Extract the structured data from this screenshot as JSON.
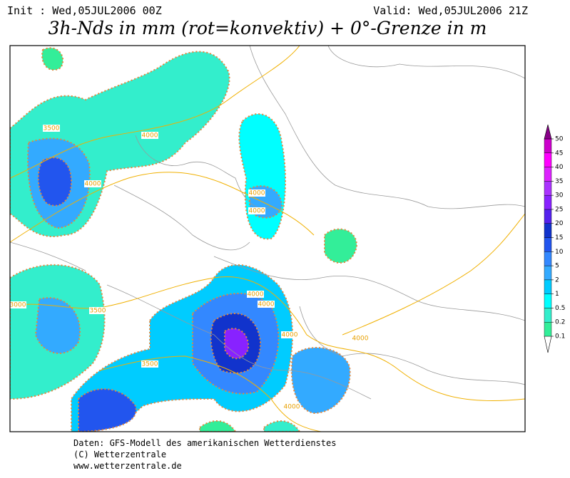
{
  "header": {
    "init": "Init : Wed,05JUL2006 00Z",
    "valid": "Valid: Wed,05JUL2006 21Z",
    "title": "3h-Nds in mm (rot=konvektiv) + 0°-Grenze in m"
  },
  "legend": {
    "ticks": [
      0.1,
      0.2,
      0.5,
      1,
      2,
      5,
      10,
      15,
      20,
      25,
      30,
      35,
      40,
      45,
      50
    ],
    "colors": [
      "#33ee99",
      "#33eecc",
      "#00ffff",
      "#00ccff",
      "#33aaff",
      "#3388ff",
      "#2255ee",
      "#1133cc",
      "#5522ee",
      "#8822ff",
      "#aa33ff",
      "#dd22ff",
      "#ff00ff",
      "#cc00cc",
      "#880088"
    ]
  },
  "contour_labels": [
    "3500",
    "4000",
    "4000",
    "4000",
    "4000",
    "3000",
    "3500",
    "3500",
    "4000",
    "4000",
    "4000",
    "4000",
    "4000"
  ],
  "footer": {
    "line1": "Daten: GFS-Modell des amerikanischen Wetterdienstes",
    "line2": "(C) Wetterzentrale",
    "line3": "www.wetterzentrale.de"
  }
}
